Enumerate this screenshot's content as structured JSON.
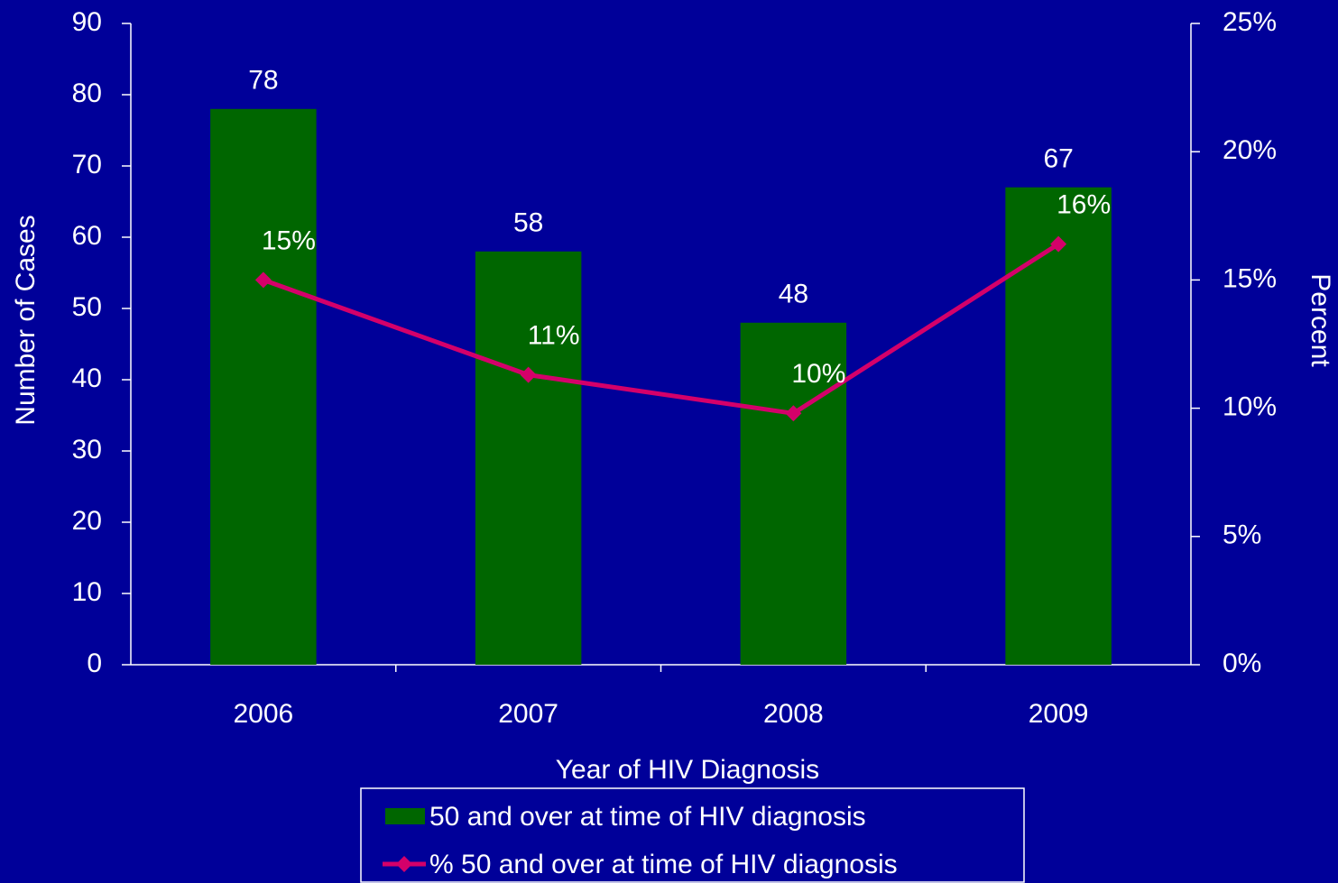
{
  "chart_data": {
    "type": "bar",
    "categories": [
      "2006",
      "2007",
      "2008",
      "2009"
    ],
    "x_label": "Year of HIV Diagnosis",
    "y_label": "Number of Cases",
    "y2_label": "Percent",
    "ylim": [
      0,
      90
    ],
    "yticks": [
      0,
      10,
      20,
      30,
      40,
      50,
      60,
      70,
      80,
      90
    ],
    "y2lim": [
      0,
      25
    ],
    "y2ticks": [
      {
        "value": 0,
        "label": "0%"
      },
      {
        "value": 5,
        "label": "5%"
      },
      {
        "value": 10,
        "label": "10%"
      },
      {
        "value": 15,
        "label": "15%"
      },
      {
        "value": 20,
        "label": "20%"
      },
      {
        "value": 25,
        "label": "25%"
      }
    ],
    "series": [
      {
        "name": "50 and over at time of HIV diagnosis",
        "type": "bar",
        "color": "#006600",
        "values": [
          78,
          58,
          48,
          67
        ]
      },
      {
        "name": "% 50 and over at time of HIV diagnosis",
        "type": "line",
        "axis": "y2",
        "color": "#d4006a",
        "values": [
          15,
          11.3,
          9.8,
          16.4
        ],
        "value_labels": [
          "15%",
          "11%",
          "10%",
          "16%"
        ]
      }
    ]
  }
}
